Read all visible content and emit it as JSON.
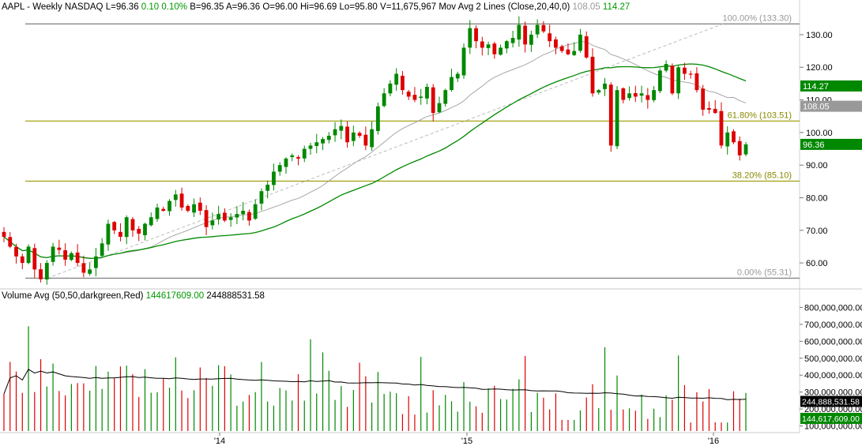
{
  "header": {
    "ticker": "AAPL",
    "period": "Weekly",
    "exchange": "NASDAQ",
    "last": "L=96.36",
    "change": "0.10",
    "change_pct": "0.10%",
    "bid": "B=96.35",
    "ask": "A=96.36",
    "open": "O=96.00",
    "high": "Hi=96.69",
    "low": "Lo=95.80",
    "volume": "V=11,675,967",
    "ma_label": "Mov Avg 2 Lines (Close,20,40,0)",
    "ma20_value": "108.05",
    "ma40_value": "114.27"
  },
  "volume_header": {
    "label": "Volume Avg (50,50,darkgreen,Red)",
    "last_volume": "144617609.00",
    "avg_volume": "244888531.58"
  },
  "colors": {
    "up": "#008800",
    "down": "#dd0000",
    "ma20": "#a8a8a8",
    "ma40": "#008800",
    "fib_line": "#999900",
    "range_line": "#888888",
    "volume_avg": "#000000",
    "header_green": "#009900",
    "header_gray": "#999999"
  },
  "chart_data": [
    {
      "type": "candlestick",
      "period": "Weekly",
      "x_tick_labels": [
        "'14",
        "'15",
        "'16"
      ],
      "y_tick_labels": [
        "60.00",
        "70.00",
        "80.00",
        "90.00",
        "100.00",
        "110.00",
        "120.00",
        "130.00"
      ],
      "ylim": [
        53,
        137
      ],
      "grid": false,
      "moving_averages": [
        {
          "period": 20,
          "color": "gray",
          "last": 108.05
        },
        {
          "period": 40,
          "color": "green",
          "last": 114.27
        }
      ],
      "fibonacci": [
        {
          "label": "100.00% (133.30)",
          "value": 133.3
        },
        {
          "label": "61.80% (103.51)",
          "value": 103.51
        },
        {
          "label": "38.20% (85.10)",
          "value": 85.1
        },
        {
          "label": "0.00% (55.31)",
          "value": 55.31
        }
      ],
      "price_tags": [
        {
          "label": "114.27",
          "value": 114.27,
          "color": "#008800"
        },
        {
          "label": "108.05",
          "value": 108.05,
          "color": "#999999"
        },
        {
          "label": "96.36",
          "value": 96.36,
          "color": "#008800"
        }
      ],
      "close_series": [
        68,
        65,
        62,
        60,
        65,
        58,
        55,
        60,
        65,
        64,
        61,
        63,
        60,
        57,
        58,
        62,
        66,
        72,
        70,
        68,
        74,
        70,
        69,
        72,
        74,
        77,
        76,
        79,
        81,
        77,
        76,
        78,
        76,
        71,
        73,
        75,
        73,
        74,
        75,
        76,
        73,
        78,
        82,
        84,
        88,
        90,
        92,
        93,
        92,
        95,
        96,
        97,
        98,
        99,
        101,
        102,
        97,
        100,
        99,
        96,
        101,
        108,
        112,
        115,
        118,
        113,
        111,
        110,
        111,
        114,
        106,
        109,
        113,
        117,
        118,
        126,
        132,
        128,
        126,
        127,
        124,
        126,
        128,
        129,
        133,
        127,
        130,
        133,
        131,
        128,
        126,
        125,
        124,
        125,
        130,
        123,
        112,
        113,
        115,
        96,
        113,
        110,
        112,
        111,
        112,
        110,
        113,
        119,
        121,
        112,
        120,
        118,
        118,
        113,
        107,
        107,
        106,
        96,
        100,
        97,
        93,
        96.36
      ],
      "volume_axis_labels": [
        "100,000,000.00",
        "200,000,000.00",
        "300,000,000.00",
        "400,000,000.00",
        "500,000,000.00",
        "600,000,000.00",
        "700,000,000.00",
        "800,000,000.00"
      ],
      "volume_ylim": [
        70000000,
        830000000
      ],
      "volume_tags": [
        {
          "label": "244,888,531.58",
          "value": 244888531.58
        },
        {
          "label": "144,617,609.00",
          "value": 144617609
        }
      ]
    }
  ]
}
